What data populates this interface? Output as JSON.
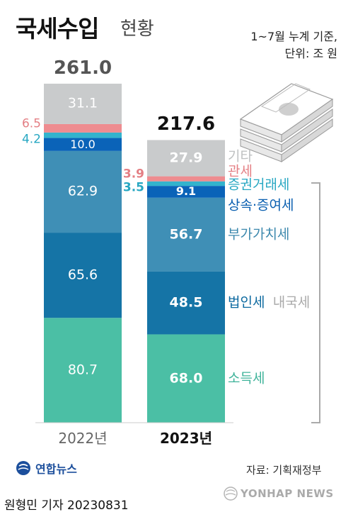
{
  "title": "국세수입",
  "subtitle": "현황",
  "notes": [
    "1~7월 누계 기준,",
    "단위: 조 원"
  ],
  "source": "자료: 기획재정부",
  "byline": "원형민 기자  20230831",
  "logo_text": "연합뉴스",
  "watermark": "YONHAP NEWS",
  "colors": {
    "income_tax": "#4bbfa5",
    "corporate_tax": "#1574a6",
    "vat": "#3f8fb6",
    "inheritance_gift": "#0a63b8",
    "securities": "#33b3cd",
    "customs": "#ee8c90",
    "other": "#c9cbcc",
    "bracket": "#aaaaaa"
  },
  "chart_data": {
    "type": "bar",
    "stacked": true,
    "categories": [
      "2022년",
      "2023년"
    ],
    "totals": [
      261.0,
      217.6
    ],
    "total_labels": [
      "261.0",
      "217.6"
    ],
    "series": [
      {
        "name": "소득세",
        "values": [
          80.7,
          68.0
        ],
        "labels": [
          "80.7",
          "68.0"
        ],
        "color_key": "income_tax"
      },
      {
        "name": "법인세",
        "values": [
          65.6,
          48.5
        ],
        "labels": [
          "65.6",
          "48.5"
        ],
        "color_key": "corporate_tax"
      },
      {
        "name": "부가가치세",
        "values": [
          62.9,
          56.7
        ],
        "labels": [
          "62.9",
          "56.7"
        ],
        "color_key": "vat"
      },
      {
        "name": "상속·증여세",
        "values": [
          10.0,
          9.1
        ],
        "labels": [
          "10.0",
          "9.1"
        ],
        "color_key": "inheritance_gift"
      },
      {
        "name": "증권거래세",
        "values": [
          4.2,
          3.5
        ],
        "labels": [
          "4.2",
          "3.5"
        ],
        "color_key": "securities"
      },
      {
        "name": "관세",
        "values": [
          6.5,
          3.9
        ],
        "labels": [
          "6.5",
          "3.9"
        ],
        "color_key": "customs"
      },
      {
        "name": "기타",
        "values": [
          31.1,
          27.9
        ],
        "labels": [
          "31.1",
          "27.9"
        ],
        "color_key": "other"
      }
    ],
    "group_label": "내국세"
  }
}
